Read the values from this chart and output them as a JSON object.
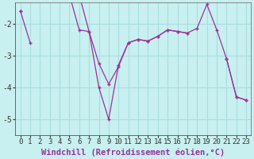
{
  "background_color": "#c8f0f0",
  "line_color": "#993399",
  "grid_color": "#aadddd",
  "xlabel": "Windchill (Refroidissement éolien,°C)",
  "xlabel_fontsize": 7.5,
  "tick_fontsize": 6.5,
  "xlim": [
    -0.5,
    23.5
  ],
  "ylim": [
    -5.5,
    -1.35
  ],
  "yticks": [
    -5,
    -4,
    -3,
    -2
  ],
  "xticks": [
    0,
    1,
    2,
    3,
    4,
    5,
    6,
    7,
    8,
    9,
    10,
    11,
    12,
    13,
    14,
    15,
    16,
    17,
    18,
    19,
    20,
    21,
    22,
    23
  ],
  "series": [
    [
      -1.6,
      -2.6,
      null,
      null,
      null,
      null,
      null,
      null,
      null,
      null,
      null,
      null,
      null,
      null,
      null,
      null,
      null,
      null,
      null,
      null,
      null,
      null,
      null,
      null
    ],
    [
      -1.6,
      null,
      null,
      -1.2,
      -1.2,
      -1.1,
      -2.2,
      -2.25,
      -3.25,
      -3.9,
      -3.35,
      -2.6,
      -2.5,
      -2.55,
      -2.4,
      -2.2,
      -2.25,
      -2.3,
      -2.15,
      -1.4,
      -2.2,
      -3.1,
      -4.3,
      -4.4
    ],
    [
      null,
      null,
      null,
      -1.1,
      -1.1,
      -1.1,
      -1.1,
      -2.25,
      -4.0,
      -5.0,
      -3.3,
      -2.6,
      -2.5,
      -2.55,
      -2.4,
      -2.2,
      -2.25,
      -2.3,
      null,
      null,
      null,
      -3.1,
      -4.3,
      -4.4
    ]
  ]
}
